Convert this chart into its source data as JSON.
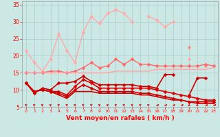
{
  "background_color": "#cce8e4",
  "grid_color": "#aacccc",
  "xlabel": "Vent moyen/en rafales ( km/h )",
  "x_ticks": [
    0,
    1,
    2,
    3,
    4,
    5,
    6,
    7,
    8,
    9,
    10,
    11,
    12,
    13,
    14,
    15,
    16,
    17,
    18,
    19,
    20,
    21,
    22,
    23
  ],
  "ylim": [
    5,
    36
  ],
  "yticks": [
    5,
    10,
    15,
    20,
    25,
    30,
    35
  ],
  "series": [
    {
      "name": "rafales_max_light",
      "color": "#ffaaaa",
      "linewidth": 1.0,
      "marker": "D",
      "markersize": 2.5,
      "values": [
        21.5,
        18.0,
        15.5,
        19.0,
        26.5,
        21.5,
        18.0,
        27.0,
        31.5,
        29.5,
        32.5,
        33.5,
        32.5,
        30.0,
        null,
        31.5,
        30.5,
        28.5,
        30.0,
        null,
        19.0,
        null,
        null,
        null
      ]
    },
    {
      "name": "rafales_peak",
      "color": "#ff8888",
      "linewidth": 1.0,
      "marker": "D",
      "markersize": 2.5,
      "values": [
        null,
        null,
        null,
        null,
        null,
        null,
        null,
        null,
        null,
        null,
        null,
        null,
        null,
        null,
        null,
        null,
        null,
        null,
        null,
        null,
        22.5,
        null,
        17.0,
        null
      ]
    },
    {
      "name": "vent_moyen_med",
      "color": "#ff6666",
      "linewidth": 1.0,
      "marker": "D",
      "markersize": 2.5,
      "values": [
        15.0,
        15.0,
        15.0,
        15.5,
        15.5,
        15.0,
        15.5,
        16.5,
        18.0,
        16.5,
        17.0,
        19.0,
        17.5,
        19.0,
        17.5,
        17.5,
        17.0,
        17.0,
        17.0,
        17.0,
        17.0,
        17.0,
        17.5,
        17.0
      ]
    },
    {
      "name": "line_flat_pink",
      "color": "#ffaaaa",
      "linewidth": 1.2,
      "marker": null,
      "markersize": 0,
      "values": [
        15.0,
        15.0,
        15.0,
        15.0,
        15.0,
        15.0,
        15.0,
        15.0,
        15.0,
        15.0,
        15.0,
        15.5,
        15.5,
        15.5,
        15.5,
        15.5,
        16.0,
        16.0,
        16.0,
        16.0,
        16.0,
        16.0,
        16.0,
        16.5
      ]
    },
    {
      "name": "vent_moyen_dark1",
      "color": "#cc0000",
      "linewidth": 1.2,
      "marker": "D",
      "markersize": 2.5,
      "values": [
        12.0,
        9.0,
        10.5,
        10.0,
        12.0,
        12.0,
        12.5,
        14.0,
        12.5,
        11.5,
        11.5,
        11.5,
        11.5,
        11.5,
        11.0,
        11.0,
        10.5,
        14.5,
        14.5,
        null,
        8.5,
        13.5,
        13.5,
        null
      ]
    },
    {
      "name": "vent_moyen_dark2",
      "color": "#dd0000",
      "linewidth": 1.2,
      "marker": "D",
      "markersize": 2.5,
      "values": [
        12.0,
        9.5,
        10.0,
        9.5,
        9.5,
        8.5,
        11.0,
        13.0,
        12.0,
        10.5,
        10.5,
        10.5,
        10.5,
        10.5,
        10.5,
        10.5,
        10.0,
        9.5,
        9.0,
        8.5,
        8.0,
        7.5,
        7.0,
        7.0
      ]
    },
    {
      "name": "vent_moyen_dark3",
      "color": "#cc0000",
      "linewidth": 1.2,
      "marker": "D",
      "markersize": 2.5,
      "values": [
        12.0,
        9.5,
        10.0,
        9.5,
        9.0,
        8.0,
        10.0,
        11.5,
        10.5,
        9.5,
        9.5,
        9.5,
        9.5,
        9.5,
        9.0,
        9.0,
        8.5,
        8.0,
        7.5,
        7.0,
        6.5,
        6.5,
        6.5,
        6.5
      ]
    },
    {
      "name": "vent_moyen_dark4",
      "color": "#cc0000",
      "linewidth": 1.2,
      "marker": null,
      "markersize": 0,
      "values": [
        12.0,
        9.5,
        10.0,
        9.5,
        8.5,
        7.5,
        9.5,
        9.5,
        9.5,
        9.0,
        9.0,
        9.0,
        9.0,
        9.0,
        8.5,
        8.5,
        8.0,
        7.5,
        7.0,
        7.0,
        6.5,
        6.0,
        6.0,
        6.0
      ]
    }
  ],
  "wind_arrows": {
    "x_positions": [
      0,
      1,
      2,
      3,
      4,
      5,
      6,
      7,
      8,
      9,
      10,
      11,
      12,
      13,
      14,
      15,
      16,
      17,
      18,
      19,
      20,
      21,
      22,
      23
    ],
    "angles_deg": [
      225,
      225,
      225,
      225,
      225,
      225,
      225,
      225,
      225,
      225,
      225,
      225,
      225,
      225,
      225,
      225,
      270,
      270,
      270,
      270,
      315,
      315,
      270,
      270
    ]
  }
}
